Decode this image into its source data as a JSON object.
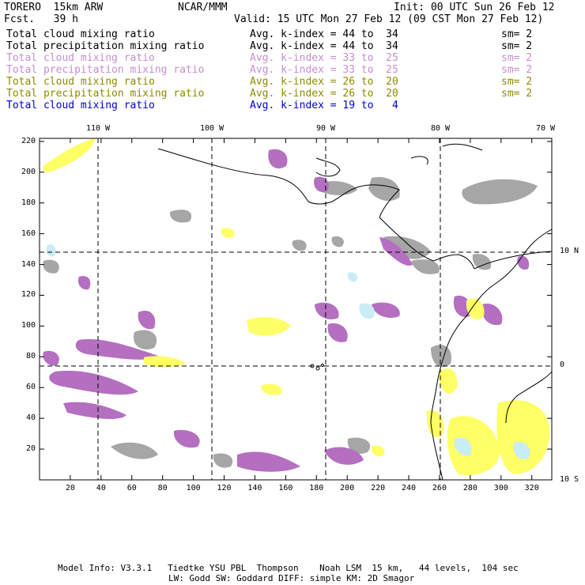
{
  "header": {
    "model_name": "TORERO  15km ARW",
    "org": "NCAR/MMM",
    "init": "Init: 00 UTC Sun 26 Feb 12",
    "fcst": "Fcst.   39 h",
    "valid": "Valid: 15 UTC Mon 27 Feb 12 (09 CST Mon 27 Feb 12)"
  },
  "legend": [
    {
      "field": "Total cloud mixing ratio",
      "kindex": "Avg. k-index = 44 to  34",
      "sm": "sm= 2",
      "color": "#000000"
    },
    {
      "field": "Total precipitation mixing ratio",
      "kindex": "Avg. k-index = 44 to  34",
      "sm": "sm= 2",
      "color": "#000000"
    },
    {
      "field": "Total cloud mixing ratio",
      "kindex": "Avg. k-index = 33 to  25",
      "sm": "sm= 2",
      "color": "#c58fd0"
    },
    {
      "field": "Total precipitation mixing ratio",
      "kindex": "Avg. k-index = 33 to  25",
      "sm": "sm= 2",
      "color": "#c58fd0"
    },
    {
      "field": "Total cloud mixing ratio",
      "kindex": "Avg. k-index = 26 to  20",
      "sm": "sm= 2",
      "color": "#8c8c00"
    },
    {
      "field": "Total precipitation mixing ratio",
      "kindex": "Avg. k-index = 26 to  20",
      "sm": "sm= 2",
      "color": "#8c8c00"
    },
    {
      "field": "Total cloud mixing ratio",
      "kindex": "Avg. k-index = 19 to   4",
      "sm": "",
      "color": "#0000cc"
    }
  ],
  "axes": {
    "lon_labels": [
      "110 W",
      "100 W",
      "90 W",
      "80 W",
      "70 W"
    ],
    "lat_labels": [
      "10 N",
      "0",
      "10 S"
    ],
    "x_ticks": [
      "20",
      "40",
      "60",
      "80",
      "100",
      "120",
      "140",
      "160",
      "180",
      "200",
      "220",
      "240",
      "260",
      "280",
      "300",
      "320"
    ],
    "y_ticks": [
      "220",
      "200",
      "180",
      "160",
      "140",
      "120",
      "100",
      "80",
      "60",
      "40",
      "20"
    ]
  },
  "colors": {
    "gray_cloud": "#a6a6a6",
    "purple_cloud": "#b46fc1",
    "yellow_cloud": "#ffff66",
    "cyan_cloud": "#c9ecf7",
    "coastline": "#000000"
  },
  "footer": {
    "line1": "Model Info: V3.3.1   Tiedtke YSU PBL  Thompson    Noah LSM  15 km,   44 levels,  104 sec",
    "line2": "LW: Godd SW: Goddard DIFF: simple KM: 2D Smagor"
  }
}
